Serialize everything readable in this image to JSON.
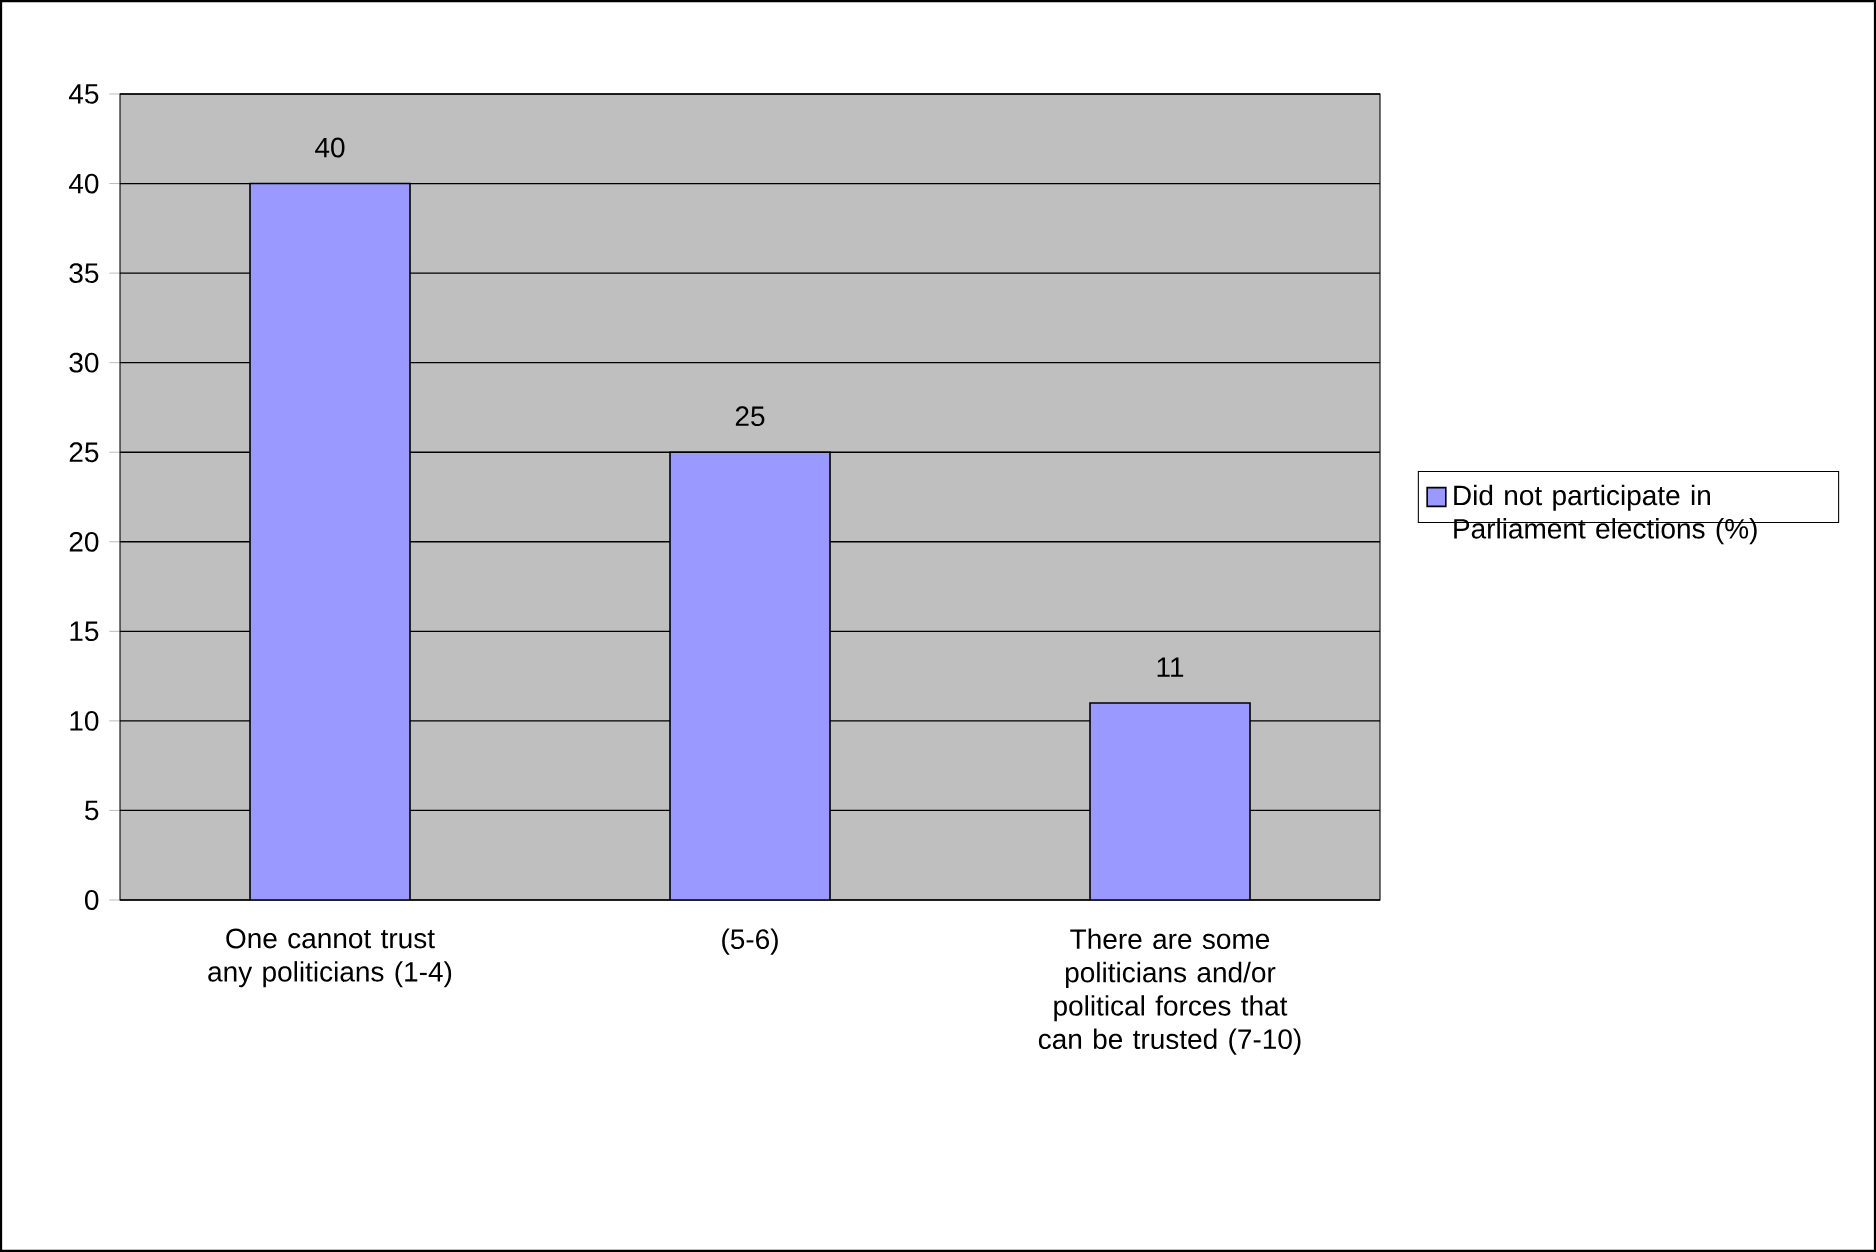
{
  "chart_data": {
    "type": "bar",
    "categories": [
      "One cannot trust any politicians (1-4)",
      "(5-6)",
      "There are some politicians and/or political forces that can be trusted (7-10)"
    ],
    "series": [
      {
        "name": "Did not participate in Parliament elections (%)",
        "color": "#9999ff",
        "values": [
          40,
          25,
          11
        ]
      }
    ],
    "ylim": [
      0,
      45
    ],
    "yticks": [
      0,
      5,
      10,
      15,
      20,
      25,
      30,
      35,
      40,
      45
    ],
    "grid": "y",
    "legend": "right",
    "data_labels": true
  }
}
